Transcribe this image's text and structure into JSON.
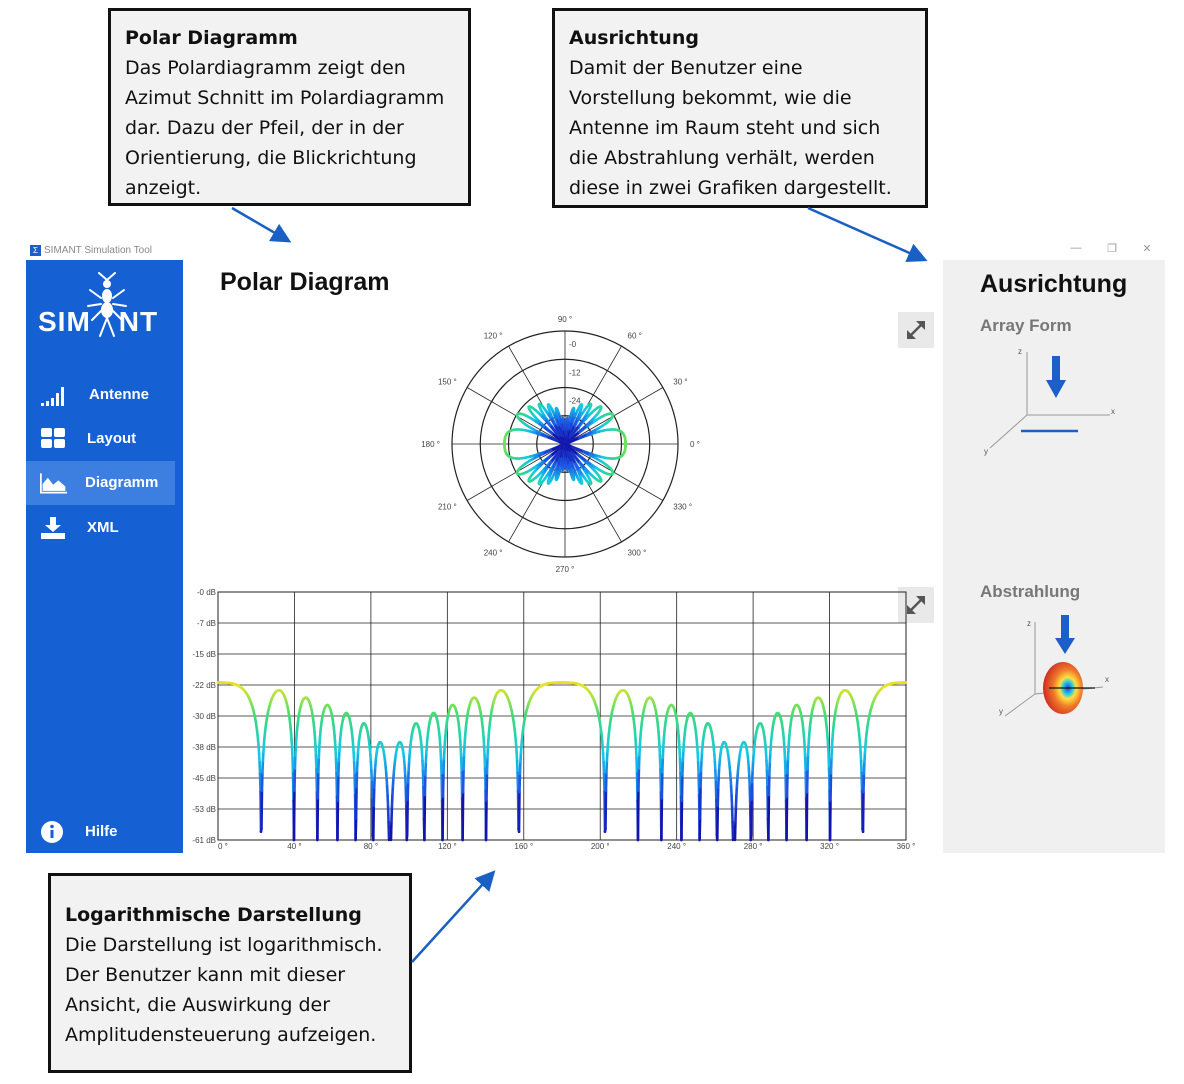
{
  "callouts": {
    "polar": {
      "title": "Polar Diagramm",
      "body": "Das Polardiagramm zeigt den\nAzimut Schnitt im Polardiagramm\ndar. Dazu der Pfeil, der in der\nOrientierung, die Blickrichtung\nanzeigt."
    },
    "ausrichtung": {
      "title": "Ausrichtung",
      "body": "Damit der Benutzer eine\nVorstellung bekommt, wie die\nAntenne im Raum steht und sich\ndie Abstrahlung verhält, werden\ndiese in zwei Grafiken dargestellt."
    },
    "log": {
      "title": "Logarithmische Darstellung",
      "body": "Die Darstellung ist logarithmisch.\nDer Benutzer kann mit dieser\nAnsicht, die Auswirkung der\nAmplitudensteuerung aufzeigen."
    }
  },
  "window": {
    "icon_glyph": "Σ",
    "title": "SIMANT Simulation Tool",
    "minimize": "—",
    "maximize": "❐",
    "close": "✕"
  },
  "sidebar": {
    "logo": {
      "left": "SIM",
      "right": "NT"
    },
    "items": [
      {
        "label": "Antenne",
        "icon": "signal-icon"
      },
      {
        "label": "Layout",
        "icon": "grid-icon"
      },
      {
        "label": "Diagramm",
        "icon": "area-chart-icon",
        "active": true
      },
      {
        "label": "XML",
        "icon": "download-icon"
      }
    ],
    "help": {
      "label": "Hilfe",
      "icon": "info-icon"
    }
  },
  "main": {
    "title": "Polar Diagram"
  },
  "right_panel": {
    "title": "Ausrichtung",
    "array_form": "Array Form",
    "abstrahlung": "Abstrahlung",
    "axis_labels": {
      "z": "z",
      "x": "x",
      "y": "y"
    }
  },
  "colors": {
    "sidebar": "#1560d3",
    "sidebar_active": "#3c7fe0",
    "panel": "#f0f0f0",
    "arrow": "#1a5fc4",
    "callout_bg": "#f2f2f2"
  },
  "chart_data": [
    {
      "type": "polar",
      "angle_labels": [
        "0 °",
        "30 °",
        "60 °",
        "90 °",
        "120 °",
        "150 °",
        "180 °",
        "210 °",
        "240 °",
        "270 °",
        "300 °",
        "330 °"
      ],
      "radial_labels": [
        "-0",
        "-12",
        "-24",
        "-36"
      ],
      "rlim": [
        -48,
        0
      ],
      "pattern": "figure-eight, maxima at 0° and 180° (0 dB), nulls near 90° and 270°"
    },
    {
      "type": "line",
      "x_ticks": [
        "0 °",
        "40 °",
        "80 °",
        "120 °",
        "160 °",
        "200 °",
        "240 °",
        "280 °",
        "320 °",
        "360 °"
      ],
      "y_ticks": [
        "-0 dB",
        "-7 dB",
        "-15 dB",
        "-22 dB",
        "-30 dB",
        "-38 dB",
        "-45 dB",
        "-53 dB",
        "-61 dB"
      ],
      "xlim": [
        0,
        360
      ],
      "ylim": [
        -61,
        0
      ],
      "lobe_peaks": [
        {
          "x": 46,
          "y": -46
        },
        {
          "x": 55,
          "y": -49
        },
        {
          "x": 64,
          "y": -51
        },
        {
          "x": 73,
          "y": -52
        },
        {
          "x": 82,
          "y": -53
        },
        {
          "x": 91,
          "y": -54
        },
        {
          "x": 100,
          "y": -54
        },
        {
          "x": 109,
          "y": -53
        },
        {
          "x": 118,
          "y": -52
        },
        {
          "x": 127,
          "y": -51
        },
        {
          "x": 136,
          "y": -49
        },
        {
          "x": 145,
          "y": -46
        },
        {
          "x": 226,
          "y": -46
        },
        {
          "x": 235,
          "y": -49
        },
        {
          "x": 244,
          "y": -51
        },
        {
          "x": 253,
          "y": -52
        },
        {
          "x": 262,
          "y": -53
        },
        {
          "x": 271,
          "y": -54
        },
        {
          "x": 280,
          "y": -54
        },
        {
          "x": 289,
          "y": -53
        },
        {
          "x": 298,
          "y": -52
        },
        {
          "x": 307,
          "y": -51
        },
        {
          "x": 316,
          "y": -49
        },
        {
          "x": 325,
          "y": -46
        }
      ],
      "main_lobes": [
        {
          "center": 0,
          "y": 0
        },
        {
          "center": 180,
          "y": 0
        },
        {
          "center": 360,
          "y": 0
        }
      ],
      "grid": true
    }
  ]
}
